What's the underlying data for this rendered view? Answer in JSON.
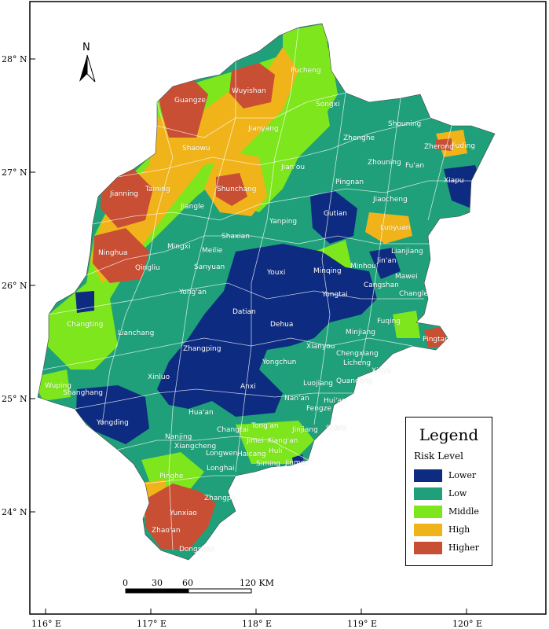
{
  "colors": {
    "Lower": "#0d2b80",
    "Low": "#1fa07a",
    "Middle": "#7ee61c",
    "High": "#f0b41a",
    "Higher": "#c84f34",
    "frame": "#000000",
    "sea": "#ffffff"
  },
  "map": {
    "lat_labels": [
      "28° N",
      "27° N",
      "26° N",
      "25° N",
      "24° N"
    ],
    "lon_labels": [
      "116° E",
      "117° E",
      "118° E",
      "119° E",
      "120° E"
    ],
    "north_label": "N",
    "scale": {
      "ticks": [
        "0",
        "30",
        "60",
        "120 KM"
      ]
    },
    "places": [
      {
        "name": "Pucheng",
        "risk": "Middle"
      },
      {
        "name": "Wuyishan",
        "risk": "Higher"
      },
      {
        "name": "Guangze",
        "risk": "Higher"
      },
      {
        "name": "Songxi",
        "risk": "Middle"
      },
      {
        "name": "Jianyang",
        "risk": "High"
      },
      {
        "name": "Shouning",
        "risk": "Low"
      },
      {
        "name": "Zhenghe",
        "risk": "Low"
      },
      {
        "name": "Zherong",
        "risk": "High"
      },
      {
        "name": "Fuding",
        "risk": "Low"
      },
      {
        "name": "Shaowu",
        "risk": "High"
      },
      {
        "name": "Jian'ou",
        "risk": "Low"
      },
      {
        "name": "Zhouning",
        "risk": "Low"
      },
      {
        "name": "Fu'an",
        "risk": "Low"
      },
      {
        "name": "Xiapu",
        "risk": "Lower"
      },
      {
        "name": "Jianning",
        "risk": "Higher"
      },
      {
        "name": "Taining",
        "risk": "High"
      },
      {
        "name": "Shunchang",
        "risk": "Higher"
      },
      {
        "name": "Pingnan",
        "risk": "Low"
      },
      {
        "name": "Jiaocheng",
        "risk": "Low"
      },
      {
        "name": "Jiangle",
        "risk": "Middle"
      },
      {
        "name": "Gutian",
        "risk": "Lower"
      },
      {
        "name": "Yanping",
        "risk": "Middle"
      },
      {
        "name": "Luoyuan",
        "risk": "High"
      },
      {
        "name": "Ninghua",
        "risk": "Higher"
      },
      {
        "name": "Shaxian",
        "risk": "Low"
      },
      {
        "name": "Mingxi",
        "risk": "Low"
      },
      {
        "name": "Meilie",
        "risk": "Low"
      },
      {
        "name": "Qingliu",
        "risk": "Higher"
      },
      {
        "name": "Lianjiang",
        "risk": "Low"
      },
      {
        "name": "Jin'an",
        "risk": "Lower"
      },
      {
        "name": "Minhou",
        "risk": "Low"
      },
      {
        "name": "Minqing",
        "risk": "Middle"
      },
      {
        "name": "Sanyuan",
        "risk": "Low"
      },
      {
        "name": "Youxi",
        "risk": "Lower"
      },
      {
        "name": "Mawei",
        "risk": "Low"
      },
      {
        "name": "Cangshan",
        "risk": "Lower"
      },
      {
        "name": "Yong'an",
        "risk": "Low"
      },
      {
        "name": "Changle",
        "risk": "Low"
      },
      {
        "name": "Yongtai",
        "risk": "Lower"
      },
      {
        "name": "Changting",
        "risk": "Low"
      },
      {
        "name": "Datian",
        "risk": "Lower"
      },
      {
        "name": "Dehua",
        "risk": "Lower"
      },
      {
        "name": "Fuqing",
        "risk": "Low"
      },
      {
        "name": "Minjiang",
        "risk": "Low"
      },
      {
        "name": "Lianchang",
        "risk": "Middle"
      },
      {
        "name": "Pingtan",
        "risk": "Higher"
      },
      {
        "name": "Zhangping",
        "risk": "Lower"
      },
      {
        "name": "Xianyou",
        "risk": "Low"
      },
      {
        "name": "Chengxiang",
        "risk": "Low"
      },
      {
        "name": "Licheng",
        "risk": "Low"
      },
      {
        "name": "Yongchun",
        "risk": "Lower"
      },
      {
        "name": "Xiuyu",
        "risk": "Low"
      },
      {
        "name": "Wuping",
        "risk": "Middle"
      },
      {
        "name": "Xinluo",
        "risk": "Lower"
      },
      {
        "name": "Luojiang",
        "risk": "Low"
      },
      {
        "name": "Quangang",
        "risk": "Low"
      },
      {
        "name": "Anxi",
        "risk": "Lower"
      },
      {
        "name": "Shanghang",
        "risk": "Lower"
      },
      {
        "name": "Nan'an",
        "risk": "Low"
      },
      {
        "name": "Hui'an",
        "risk": "Low"
      },
      {
        "name": "Fengze",
        "risk": "Low"
      },
      {
        "name": "Hua'an",
        "risk": "Low"
      },
      {
        "name": "Yongding",
        "risk": "Lower"
      },
      {
        "name": "Tong'an",
        "risk": "Middle"
      },
      {
        "name": "Changtai",
        "risk": "Low"
      },
      {
        "name": "Jinjiang",
        "risk": "Low"
      },
      {
        "name": "Shishi",
        "risk": "Low"
      },
      {
        "name": "Nanjing",
        "risk": "Low"
      },
      {
        "name": "Jimei",
        "risk": "Low"
      },
      {
        "name": "Xiang'an",
        "risk": "Low"
      },
      {
        "name": "Xiangcheng",
        "risk": "Low"
      },
      {
        "name": "Longwen",
        "risk": "Low"
      },
      {
        "name": "Haicang",
        "risk": "Low"
      },
      {
        "name": "Huli",
        "risk": "Low"
      },
      {
        "name": "Siming",
        "risk": "Low"
      },
      {
        "name": "Jinmen",
        "risk": "Lower"
      },
      {
        "name": "Longhai",
        "risk": "Low"
      },
      {
        "name": "Pinghe",
        "risk": "Middle"
      },
      {
        "name": "Zhangpu",
        "risk": "Higher"
      },
      {
        "name": "Yunxiao",
        "risk": "Higher"
      },
      {
        "name": "Zhao'an",
        "risk": "Higher"
      },
      {
        "name": "Dongshan",
        "risk": "Middle"
      }
    ]
  },
  "legend": {
    "title": "Legend",
    "subtitle": "Risk Level",
    "items": [
      {
        "label": "Lower",
        "color": "#0d2b80"
      },
      {
        "label": "Low",
        "color": "#1fa07a"
      },
      {
        "label": "Middle",
        "color": "#7ee61c"
      },
      {
        "label": "High",
        "color": "#f0b41a"
      },
      {
        "label": "Higher",
        "color": "#c84f34"
      }
    ]
  }
}
